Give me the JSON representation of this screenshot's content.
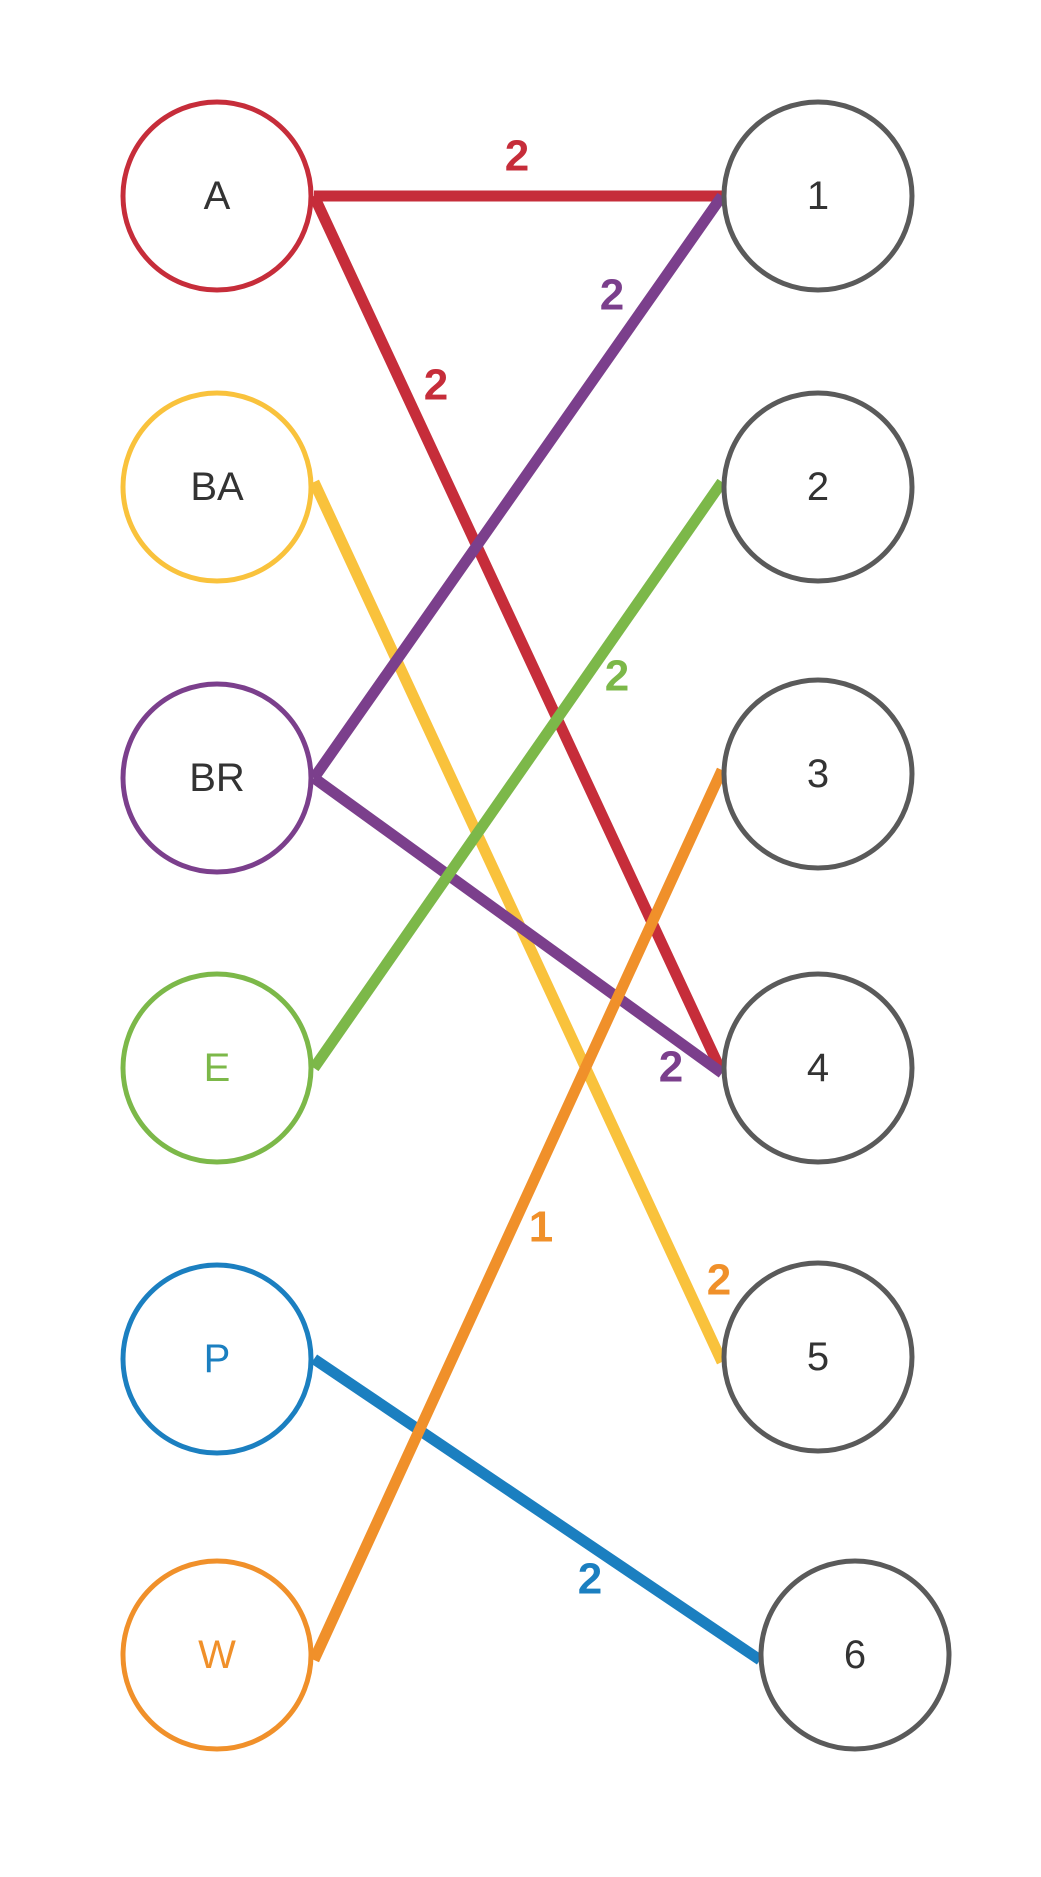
{
  "diagram": {
    "left_nodes": [
      {
        "id": "A",
        "label": "A",
        "stroke": "#c62d3a",
        "text_color": "#333333"
      },
      {
        "id": "BA",
        "label": "BA",
        "stroke": "#f9c23c",
        "text_color": "#333333"
      },
      {
        "id": "BR",
        "label": "BR",
        "stroke": "#7b3f8c",
        "text_color": "#333333"
      },
      {
        "id": "E",
        "label": "E",
        "stroke": "#7cb849",
        "text_color": "#7cb849"
      },
      {
        "id": "P",
        "label": "P",
        "stroke": "#1b7fc0",
        "text_color": "#1b7fc0"
      },
      {
        "id": "W",
        "label": "W",
        "stroke": "#f0902a",
        "text_color": "#f0902a"
      }
    ],
    "right_nodes": [
      {
        "id": "1",
        "label": "1",
        "stroke": "#5a5a5a",
        "text_color": "#333333"
      },
      {
        "id": "2",
        "label": "2",
        "stroke": "#5a5a5a",
        "text_color": "#333333"
      },
      {
        "id": "3",
        "label": "3",
        "stroke": "#5a5a5a",
        "text_color": "#333333"
      },
      {
        "id": "4",
        "label": "4",
        "stroke": "#5a5a5a",
        "text_color": "#333333"
      },
      {
        "id": "5",
        "label": "5",
        "stroke": "#5a5a5a",
        "text_color": "#333333"
      },
      {
        "id": "6",
        "label": "6",
        "stroke": "#5a5a5a",
        "text_color": "#333333"
      }
    ],
    "edges": [
      {
        "from": "A",
        "to": "1",
        "label": "2",
        "color": "#c62d3a",
        "label_color": "#c62d3a"
      },
      {
        "from": "A",
        "to": "4",
        "label": "2",
        "color": "#c62d3a",
        "label_color": "#c62d3a"
      },
      {
        "from": "BA",
        "to": "5",
        "label": "2",
        "color": "#f9c23c",
        "label_color": "#f0902a"
      },
      {
        "from": "BR",
        "to": "1",
        "label": "2",
        "color": "#7b3f8c",
        "label_color": "#7b3f8c"
      },
      {
        "from": "BR",
        "to": "4",
        "label": "2",
        "color": "#7b3f8c",
        "label_color": "#7b3f8c"
      },
      {
        "from": "E",
        "to": "2",
        "label": "2",
        "color": "#7cb849",
        "label_color": "#7cb849"
      },
      {
        "from": "P",
        "to": "6",
        "label": "2",
        "color": "#1b7fc0",
        "label_color": "#1b7fc0"
      },
      {
        "from": "W",
        "to": "3",
        "label": "1",
        "color": "#f0902a",
        "label_color": "#f0902a"
      }
    ]
  }
}
